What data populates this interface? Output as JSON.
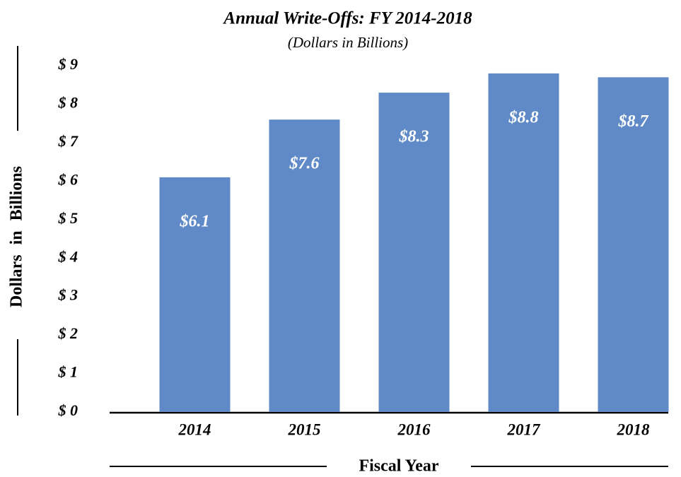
{
  "chart_data": {
    "type": "bar",
    "title": "Annual Write-Offs: FY 2014-2018",
    "subtitle": "(Dollars in Billions)",
    "x_label": "Fiscal Year",
    "y_label": "Dollars in Billions",
    "categories": [
      "2014",
      "2015",
      "2016",
      "2017",
      "2018"
    ],
    "values": [
      6.1,
      7.6,
      8.3,
      8.8,
      8.7
    ],
    "value_labels": [
      "$6.1",
      "$7.6",
      "$8.3",
      "$8.8",
      "$8.7"
    ],
    "color": "#5f8ac7",
    "ylim": [
      0,
      9
    ],
    "yticks": [
      {
        "value": 0,
        "label": "$ 0"
      },
      {
        "value": 1,
        "label": "$ 1"
      },
      {
        "value": 2,
        "label": "$ 2"
      },
      {
        "value": 3,
        "label": "$ 3"
      },
      {
        "value": 4,
        "label": "$ 4"
      },
      {
        "value": 5,
        "label": "$ 5"
      },
      {
        "value": 6,
        "label": "$ 6"
      },
      {
        "value": 7,
        "label": "$ 7"
      },
      {
        "value": 8,
        "label": "$ 8"
      },
      {
        "value": 9,
        "label": "$ 9"
      }
    ],
    "grid": false
  }
}
